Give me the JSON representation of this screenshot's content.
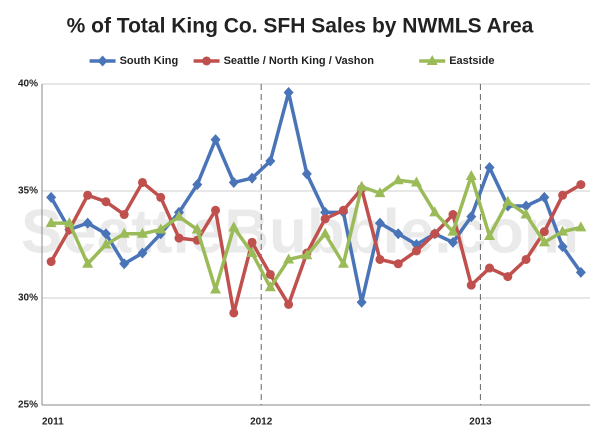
{
  "chart_data": {
    "type": "line",
    "title": "% of Total King Co. SFH Sales by NWMLS Area",
    "watermark": "SeattleBubble.com",
    "categories": [
      "2011",
      null,
      null,
      null,
      null,
      null,
      null,
      null,
      null,
      null,
      null,
      null,
      "2012",
      null,
      null,
      null,
      null,
      null,
      null,
      null,
      null,
      null,
      null,
      null,
      "2013",
      null,
      null,
      null,
      null,
      null
    ],
    "series": [
      {
        "name": "South King",
        "color": "#4a74b8",
        "marker": "diamond",
        "values": [
          34.7,
          33.2,
          33.5,
          33.0,
          31.6,
          32.1,
          33.0,
          34.0,
          35.3,
          37.4,
          35.4,
          35.6,
          36.4,
          39.6,
          35.8,
          34.0,
          34.0,
          29.8,
          33.5,
          33.0,
          32.5,
          33.0,
          32.6,
          33.8,
          36.1,
          34.3,
          34.3,
          34.7,
          32.4,
          31.2
        ]
      },
      {
        "name": "Seattle / North King / Vashon",
        "color": "#c0504d",
        "marker": "circle",
        "values": [
          31.7,
          33.2,
          34.8,
          34.5,
          33.9,
          35.4,
          34.7,
          32.8,
          32.7,
          34.1,
          29.3,
          32.6,
          31.1,
          29.7,
          32.1,
          33.7,
          34.1,
          35.1,
          31.8,
          31.6,
          32.2,
          33.0,
          33.9,
          30.6,
          31.4,
          31.0,
          31.8,
          33.1,
          34.8,
          35.3
        ]
      },
      {
        "name": "Eastside",
        "color": "#9bbb59",
        "marker": "triangle",
        "values": [
          33.5,
          33.5,
          31.6,
          32.5,
          33.0,
          33.0,
          33.2,
          33.8,
          33.2,
          30.4,
          33.3,
          32.1,
          30.5,
          31.8,
          32.0,
          33.0,
          31.6,
          35.2,
          34.9,
          35.5,
          35.4,
          34.0,
          33.1,
          35.7,
          32.9,
          34.5,
          33.9,
          32.6,
          33.1,
          33.3
        ]
      }
    ],
    "ylim": [
      25,
      40
    ],
    "yticks": [
      {
        "value": 25,
        "label": "25%"
      },
      {
        "value": 30,
        "label": "30%"
      },
      {
        "value": 35,
        "label": "35%"
      },
      {
        "value": 40,
        "label": "40%"
      }
    ],
    "grid": true
  }
}
